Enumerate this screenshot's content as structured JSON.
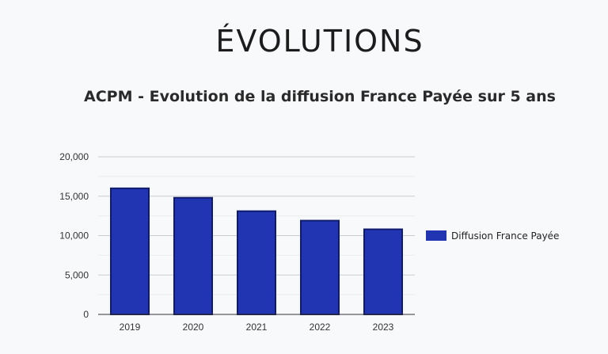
{
  "heading": "ÉVOLUTIONS",
  "chart_data": {
    "type": "bar",
    "title": "ACPM - Evolution de la diffusion France Payée sur 5 ans",
    "xlabel": "",
    "ylabel": "",
    "categories": [
      "2019",
      "2020",
      "2021",
      "2022",
      "2023"
    ],
    "series": [
      {
        "name": "Diffusion France Payée",
        "values": [
          16000,
          14800,
          13100,
          11900,
          10800
        ],
        "color": "#2135b3",
        "edge_color": "#0f1b6e"
      }
    ],
    "ylim": [
      0,
      20000
    ],
    "yticks": [
      0,
      5000,
      10000,
      15000,
      20000
    ],
    "ytick_labels": [
      "0",
      "5,000",
      "10,000",
      "15,000",
      "20,000"
    ],
    "grid": true,
    "legend": "right"
  }
}
